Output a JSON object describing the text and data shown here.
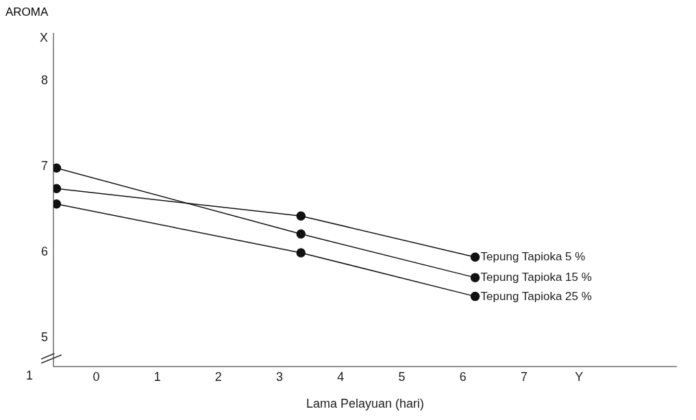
{
  "chart_data": {
    "type": "line",
    "ylabel": "AROMA",
    "xlabel": "Lama Pelayuan (hari)",
    "annotations": [
      "1"
    ],
    "x": [
      -0.65,
      3.35,
      6.2
    ],
    "series": [
      {
        "name": "Tepung Tapioka  5 %",
        "color": "#111111",
        "values": [
          6.73,
          6.41,
          5.93
        ]
      },
      {
        "name": "Tepung Tapioka  15 %",
        "color": "#111111",
        "values": [
          6.97,
          6.2,
          5.69
        ]
      },
      {
        "name": "Tepung Tapioka  25 %",
        "color": "#111111",
        "values": [
          6.55,
          5.98,
          5.47
        ]
      }
    ],
    "xlim": [
      -0.7,
      9.5
    ],
    "xticks": [
      0,
      1,
      2,
      3,
      4,
      5,
      6,
      7,
      {
        "value": 7.9,
        "label": "Y"
      }
    ],
    "ylim": [
      4.65,
      8.55
    ],
    "yticks": [
      5,
      6,
      7,
      8,
      {
        "value": 8.5,
        "label": "X"
      }
    ],
    "grid": false,
    "legend": false,
    "marker": "circle",
    "line_style": "solid"
  }
}
